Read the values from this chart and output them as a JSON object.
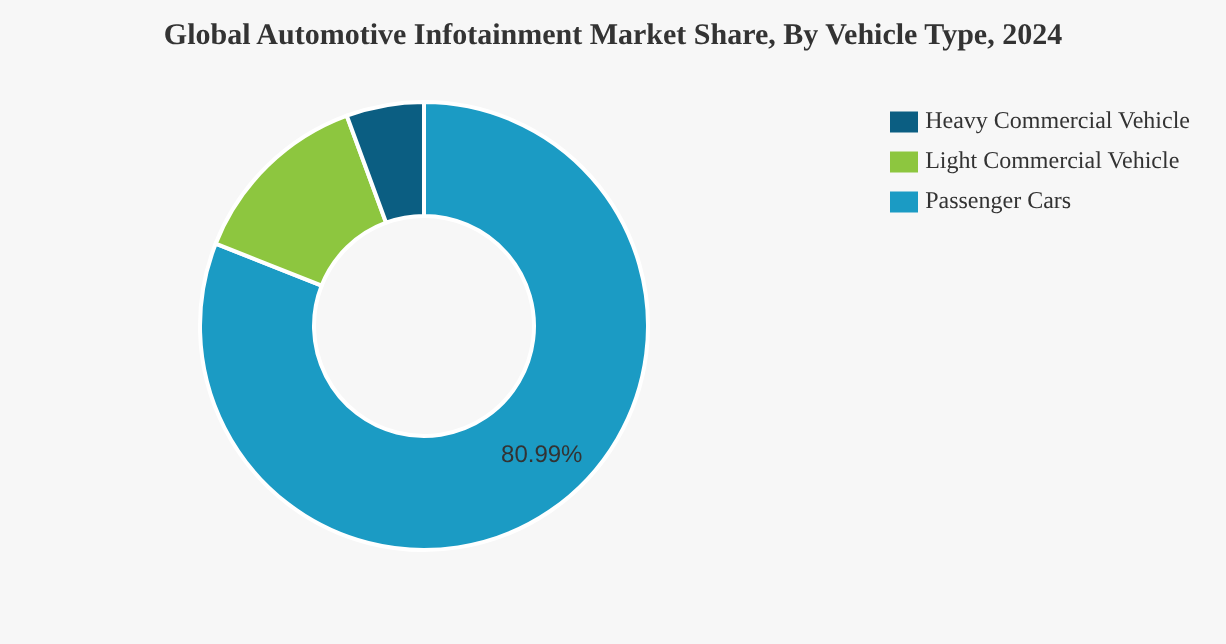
{
  "chart_data": {
    "type": "donut",
    "title": "Global Automotive Infotainment Market Share, By Vehicle Type, 2024",
    "categories": [
      "Passenger Cars",
      "Light Commercial Vehicle",
      "Heavy Commercial Vehicle"
    ],
    "values": [
      80.99,
      13.41,
      5.6
    ],
    "colors": [
      "#1b9bc4",
      "#8dc63f",
      "#0b5e82"
    ],
    "value_labels": [
      "80.99%",
      null,
      null
    ],
    "legend": "top right"
  }
}
